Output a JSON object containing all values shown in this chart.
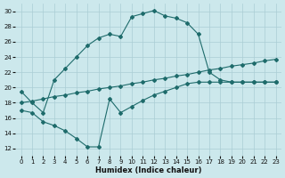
{
  "title": "",
  "xlabel": "Humidex (Indice chaleur)",
  "ylabel": "",
  "background_color": "#cce8ec",
  "line_color": "#1e6b6b",
  "grid_color": "#aacdd4",
  "ylim": [
    11,
    31
  ],
  "xlim": [
    -0.5,
    23.5
  ],
  "yticks": [
    12,
    14,
    16,
    18,
    20,
    22,
    24,
    26,
    28,
    30
  ],
  "xticks": [
    0,
    1,
    2,
    3,
    4,
    5,
    6,
    7,
    8,
    9,
    10,
    11,
    12,
    13,
    14,
    15,
    16,
    17,
    18,
    19,
    20,
    21,
    22,
    23
  ],
  "series": [
    {
      "x": [
        0,
        1,
        2,
        3,
        4,
        5,
        6,
        7,
        8,
        9,
        10,
        11,
        12,
        13,
        14,
        15,
        16,
        17,
        18,
        19,
        20,
        21,
        22,
        23
      ],
      "y": [
        19.5,
        18.0,
        16.7,
        21.0,
        22.5,
        24.0,
        25.5,
        26.5,
        27.0,
        26.7,
        29.3,
        29.7,
        30.1,
        29.4,
        29.1,
        28.5,
        27.0,
        22.0,
        21.0,
        20.7,
        20.7,
        20.7,
        20.7,
        20.7
      ],
      "has_markers": true
    },
    {
      "x": [
        0,
        1,
        2,
        3,
        4,
        5,
        6,
        7,
        8,
        9,
        10,
        11,
        12,
        13,
        14,
        15,
        16,
        17,
        18,
        19,
        20,
        21,
        22,
        23
      ],
      "y": [
        18.0,
        18.2,
        18.5,
        18.8,
        19.0,
        19.3,
        19.5,
        19.8,
        20.0,
        20.2,
        20.5,
        20.7,
        21.0,
        21.2,
        21.5,
        21.7,
        22.0,
        22.3,
        22.5,
        22.8,
        23.0,
        23.2,
        23.5,
        23.7
      ],
      "has_markers": true
    },
    {
      "x": [
        0,
        1,
        2,
        3,
        4,
        5,
        6,
        7,
        8,
        9,
        10,
        11,
        12,
        13,
        14,
        15,
        16,
        17,
        18,
        19,
        20,
        21,
        22,
        23
      ],
      "y": [
        17.0,
        16.7,
        15.5,
        15.0,
        14.3,
        13.3,
        12.2,
        12.2,
        18.5,
        16.7,
        17.5,
        18.3,
        19.0,
        19.5,
        20.0,
        20.5,
        20.7,
        20.7,
        20.7,
        20.7,
        20.7,
        20.7,
        20.7,
        20.7
      ],
      "has_markers": true
    }
  ]
}
